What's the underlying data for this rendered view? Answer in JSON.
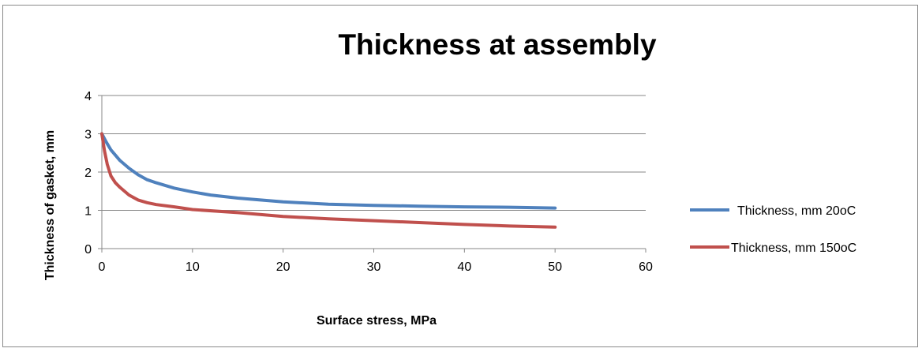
{
  "chart_data": {
    "type": "line",
    "title": "Thickness at assembly",
    "xlabel": "Surface stress, MPa",
    "ylabel": "Thickness of gasket, mm",
    "xlim": [
      0,
      60
    ],
    "ylim": [
      0,
      4
    ],
    "xticks": [
      0,
      10,
      20,
      30,
      40,
      50,
      60
    ],
    "yticks": [
      0,
      1,
      2,
      3,
      4
    ],
    "grid": "horizontal",
    "legend_position": "right",
    "series": [
      {
        "name": "Thickness, mm 20oC",
        "color": "#4f81bd",
        "x": [
          0,
          0.5,
          1,
          2,
          3,
          4,
          5,
          6,
          8,
          10,
          12,
          15,
          20,
          25,
          30,
          35,
          40,
          45,
          50
        ],
        "y": [
          3.0,
          2.78,
          2.58,
          2.3,
          2.1,
          1.93,
          1.8,
          1.72,
          1.58,
          1.48,
          1.4,
          1.32,
          1.22,
          1.16,
          1.13,
          1.11,
          1.09,
          1.08,
          1.06
        ]
      },
      {
        "name": "Thickness, mm 150oC",
        "color": "#c0504d",
        "x": [
          0,
          0.3,
          0.6,
          1,
          1.5,
          2,
          3,
          4,
          5,
          6,
          8,
          10,
          15,
          20,
          25,
          30,
          35,
          40,
          45,
          50
        ],
        "y": [
          3.0,
          2.55,
          2.2,
          1.9,
          1.72,
          1.6,
          1.4,
          1.27,
          1.2,
          1.15,
          1.09,
          1.02,
          0.94,
          0.84,
          0.78,
          0.73,
          0.68,
          0.63,
          0.59,
          0.56
        ]
      }
    ]
  }
}
